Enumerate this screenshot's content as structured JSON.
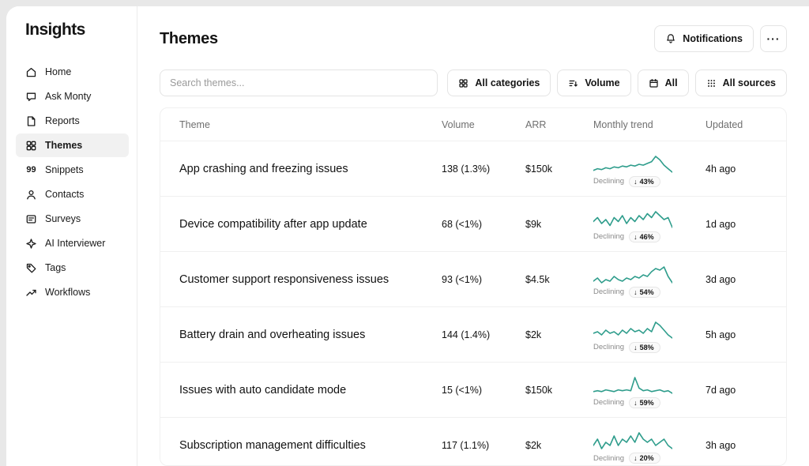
{
  "app": {
    "logo": "Insights"
  },
  "sidebar": {
    "items": [
      {
        "label": "Home"
      },
      {
        "label": "Ask Monty"
      },
      {
        "label": "Reports"
      },
      {
        "label": "Themes",
        "selected": true
      },
      {
        "label": "Snippets"
      },
      {
        "label": "Contacts"
      },
      {
        "label": "Surveys"
      },
      {
        "label": "AI Interviewer"
      },
      {
        "label": "Tags"
      },
      {
        "label": "Workflows"
      }
    ]
  },
  "header": {
    "title": "Themes",
    "notifications_label": "Notifications",
    "more_label": "···"
  },
  "filters": {
    "search_placeholder": "Search themes...",
    "buttons": [
      {
        "label": "All categories"
      },
      {
        "label": "Volume"
      },
      {
        "label": "All"
      },
      {
        "label": "All sources"
      }
    ]
  },
  "icons": {
    "down_arrow": "↓",
    "quote_glyph": "99"
  },
  "colors": {
    "spark": "#2f9d8c"
  },
  "table": {
    "columns": [
      "Theme",
      "Volume",
      "ARR",
      "Monthly trend",
      "Updated"
    ],
    "rows": [
      {
        "theme": "App crashing and freezing issues",
        "volume": "138 (1.3%)",
        "arr": "$150k",
        "updated": "4h ago",
        "trend": {
          "label": "Declining",
          "change": "43%",
          "points": [
            5,
            6,
            5.5,
            6.5,
            6,
            7,
            6.5,
            7.5,
            7,
            8,
            7.5,
            8.5,
            8,
            9,
            10,
            13,
            11,
            8,
            6,
            4
          ]
        }
      },
      {
        "theme": "Device compatibility after app update",
        "volume": "68 (<1%)",
        "arr": "$9k",
        "updated": "1d ago",
        "trend": {
          "label": "Declining",
          "change": "46%",
          "points": [
            7,
            9,
            6,
            8,
            5,
            9,
            7,
            10,
            6,
            9,
            7,
            10,
            8,
            11,
            9,
            12,
            10,
            8,
            9,
            4
          ]
        }
      },
      {
        "theme": "Customer support responsiveness issues",
        "volume": "93 (<1%)",
        "arr": "$4.5k",
        "updated": "3d ago",
        "trend": {
          "label": "Declining",
          "change": "54%",
          "points": [
            6,
            8,
            5,
            7,
            6,
            9,
            7,
            6,
            8,
            7,
            9,
            8,
            10,
            9,
            12,
            14,
            13,
            15,
            9,
            5
          ]
        }
      },
      {
        "theme": "Battery drain and overheating issues",
        "volume": "144 (1.4%)",
        "arr": "$2k",
        "updated": "5h ago",
        "trend": {
          "label": "Declining",
          "change": "58%",
          "points": [
            7,
            8,
            6,
            9,
            7,
            8,
            6,
            9,
            7,
            10,
            8,
            9,
            7,
            10,
            8,
            14,
            12,
            9,
            6,
            4
          ]
        }
      },
      {
        "theme": "Issues with auto candidate mode",
        "volume": "15 (<1%)",
        "arr": "$150k",
        "updated": "7d ago",
        "trend": {
          "label": "Declining",
          "change": "59%",
          "points": [
            6,
            6.5,
            6,
            7,
            6.5,
            6,
            7,
            6.5,
            7,
            6.5,
            14,
            8,
            6.5,
            7,
            6,
            6.5,
            7,
            6,
            6.5,
            5
          ]
        }
      },
      {
        "theme": "Subscription management difficulties",
        "volume": "117 (1.1%)",
        "arr": "$2k",
        "updated": "3h ago",
        "trend": {
          "label": "Declining",
          "change": "20%",
          "points": [
            8,
            10,
            7,
            9,
            8,
            11,
            8,
            10,
            9,
            11,
            9,
            12,
            10,
            9,
            10,
            8,
            9,
            10,
            8,
            7
          ]
        }
      }
    ]
  }
}
